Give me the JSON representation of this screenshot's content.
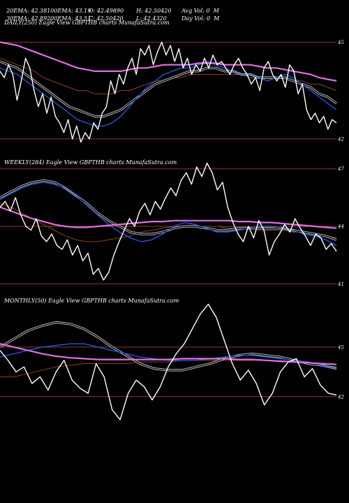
{
  "header": {
    "line1": [
      "20EMA: 42.38",
      "100EMA: 43.19",
      "O: 42.49890",
      "H: 42.50420",
      "Avg Vol: 0  M"
    ],
    "line2": [
      "30EMA: 42.89",
      "200EMA: 43.51",
      "C: 42.50420",
      "L: 42.4320",
      "Day Vol: 0  M"
    ]
  },
  "colors": {
    "background": "#000000",
    "price": "#ffffff",
    "ema_fast": "#2255dd",
    "ema_mid": "#c8c8c8",
    "ema_slow": "#8b4513",
    "ema_long": "#e070e0",
    "level_line": "#8b3a2a"
  },
  "chart_data": [
    {
      "type": "line",
      "title": "DAILY(250) Eagle  View  GBPTHB charts MunafaSutra.com",
      "y_ticks": [
        "45",
        "42"
      ],
      "levels": [
        45,
        42
      ],
      "ylim": [
        41.5,
        45.7
      ],
      "series": [
        {
          "role": "price",
          "values": [
            44.1,
            43.9,
            44.3,
            44.0,
            43.2,
            43.8,
            44.5,
            44.2,
            43.5,
            43.0,
            43.4,
            42.8,
            43.3,
            42.7,
            42.5,
            42.2,
            42.6,
            42.0,
            42.4,
            41.9,
            42.2,
            42.0,
            42.5,
            42.3,
            42.8,
            43.0,
            43.8,
            43.4,
            44.0,
            43.7,
            44.2,
            44.5,
            44.0,
            44.8,
            44.6,
            44.9,
            44.3,
            44.7,
            45.0,
            44.6,
            44.9,
            44.4,
            44.8,
            44.2,
            44.5,
            44.0,
            44.3,
            44.1,
            44.5,
            44.2,
            44.6,
            44.3,
            44.4,
            44.2,
            44.0,
            44.3,
            44.5,
            44.2,
            44.0,
            43.7,
            43.9,
            43.5,
            44.2,
            44.4,
            44.0,
            43.8,
            44.0,
            43.6,
            44.3,
            44.1,
            43.4,
            43.7,
            42.9,
            42.6,
            42.8,
            42.5,
            42.7,
            42.3,
            42.6,
            42.5
          ]
        },
        {
          "role": "ema_fast",
          "values": [
            44.2,
            44.1,
            44.0,
            43.8,
            43.6,
            43.4,
            43.2,
            43.0,
            42.8,
            42.6,
            42.5,
            42.4,
            42.4,
            42.5,
            42.7,
            43.0,
            43.3,
            43.6,
            43.8,
            44.0,
            44.1,
            44.2,
            44.2,
            44.3,
            44.4,
            44.3,
            44.2,
            44.1,
            44.0,
            44.0,
            43.9,
            43.8,
            43.9,
            44.0,
            43.9,
            43.7,
            43.5,
            43.3,
            43.1,
            42.9
          ]
        },
        {
          "role": "ema_mid",
          "values": [
            44.4,
            44.3,
            44.2,
            44.0,
            43.8,
            43.6,
            43.4,
            43.2,
            43.0,
            42.9,
            42.8,
            42.7,
            42.7,
            42.8,
            42.9,
            43.1,
            43.3,
            43.5,
            43.7,
            43.8,
            43.9,
            44.0,
            44.1,
            44.1,
            44.2,
            44.2,
            44.1,
            44.1,
            44.0,
            44.0,
            43.9,
            43.9,
            43.9,
            43.9,
            43.8,
            43.7,
            43.6,
            43.4,
            43.3,
            43.1
          ]
        },
        {
          "role": "ema_slow",
          "values": [
            44.5,
            44.4,
            44.3,
            44.2,
            44.1,
            43.9,
            43.8,
            43.7,
            43.6,
            43.5,
            43.5,
            43.4,
            43.4,
            43.4,
            43.5,
            43.5,
            43.6,
            43.7,
            43.8,
            43.8,
            43.9,
            43.9,
            44.0,
            44.0,
            44.0,
            44.0,
            44.0,
            44.0,
            44.0,
            43.9,
            43.9,
            43.9,
            43.9,
            43.9,
            43.8,
            43.8,
            43.7,
            43.7,
            43.6,
            43.5
          ]
        },
        {
          "role": "ema_long",
          "values": [
            45.0,
            44.95,
            44.9,
            44.8,
            44.7,
            44.6,
            44.5,
            44.4,
            44.3,
            44.2,
            44.15,
            44.1,
            44.1,
            44.1,
            44.1,
            44.15,
            44.2,
            44.2,
            44.25,
            44.3,
            44.3,
            44.3,
            44.3,
            44.35,
            44.35,
            44.35,
            44.3,
            44.3,
            44.3,
            44.3,
            44.25,
            44.2,
            44.2,
            44.15,
            44.1,
            44.05,
            44.0,
            43.9,
            43.85,
            43.8
          ]
        }
      ]
    },
    {
      "type": "line",
      "title": "WEEKLY(284) Eagle  View  GBPTHB charts MunafaSutra.com",
      "y_ticks": [
        "47",
        "44",
        "41"
      ],
      "levels": [
        47,
        44,
        41
      ],
      "ylim": [
        40.5,
        47.5
      ],
      "series": [
        {
          "role": "price",
          "values": [
            45.0,
            45.3,
            44.8,
            45.5,
            44.6,
            44.0,
            43.8,
            44.4,
            43.5,
            43.2,
            43.6,
            43.0,
            42.8,
            43.3,
            42.5,
            43.0,
            42.2,
            42.6,
            41.5,
            41.8,
            41.2,
            41.6,
            42.5,
            43.2,
            43.8,
            44.4,
            44.0,
            44.8,
            45.2,
            44.6,
            45.3,
            44.9,
            45.5,
            46.0,
            45.6,
            46.4,
            46.8,
            46.2,
            47.1,
            46.6,
            47.3,
            46.8,
            45.9,
            46.3,
            45.0,
            44.2,
            43.6,
            43.2,
            44.0,
            43.4,
            44.3,
            43.8,
            42.5,
            43.2,
            43.6,
            44.1,
            43.7,
            44.4,
            43.9,
            43.5,
            43.0,
            43.6,
            43.4,
            42.8,
            43.1,
            42.7
          ]
        },
        {
          "role": "ema_fast",
          "values": [
            45.4,
            45.7,
            46.0,
            46.2,
            46.3,
            46.2,
            46.0,
            45.6,
            45.1,
            44.6,
            44.1,
            43.7,
            43.4,
            43.2,
            43.3,
            43.6,
            44.0,
            44.2,
            44.1,
            43.9,
            43.7,
            43.7,
            43.8,
            43.9,
            44.0,
            44.0,
            43.9,
            43.8,
            43.6,
            43.5,
            43.3,
            43.0
          ]
        },
        {
          "role": "ema_mid",
          "values": [
            45.5,
            45.8,
            46.1,
            46.3,
            46.4,
            46.3,
            46.0,
            45.6,
            45.2,
            44.7,
            44.3,
            44.0,
            43.7,
            43.6,
            43.6,
            43.7,
            43.9,
            44.0,
            44.0,
            43.9,
            43.8,
            43.8,
            43.9,
            43.9,
            43.9,
            43.9,
            43.9,
            43.8,
            43.7,
            43.6,
            43.5,
            43.3
          ]
        },
        {
          "role": "ema_slow",
          "values": [
            45.2,
            45.0,
            44.7,
            44.4,
            44.1,
            43.8,
            43.5,
            43.3,
            43.2,
            43.2,
            43.3,
            43.4,
            43.5,
            43.7,
            43.8,
            43.9,
            44.0,
            44.0,
            44.0,
            44.0,
            44.0,
            43.9,
            43.9,
            43.9,
            43.8,
            43.8,
            43.8,
            43.7,
            43.7,
            43.6,
            43.5,
            43.4
          ]
        },
        {
          "role": "ema_long",
          "values": [
            45.0,
            44.8,
            44.6,
            44.4,
            44.25,
            44.1,
            44.0,
            43.95,
            43.95,
            44.0,
            44.05,
            44.1,
            44.15,
            44.2,
            44.25,
            44.25,
            44.3,
            44.3,
            44.3,
            44.3,
            44.3,
            44.3,
            44.25,
            44.25,
            44.2,
            44.2,
            44.15,
            44.1,
            44.05,
            44.0,
            43.95,
            43.9
          ]
        }
      ]
    },
    {
      "type": "line",
      "title": "MONTHLY(50) Eagle  View  GBPTHB charts MunafaSutra.com",
      "y_ticks": [
        "45",
        "42"
      ],
      "levels": [
        45,
        42
      ],
      "ylim": [
        40.0,
        48.0
      ],
      "series": [
        {
          "role": "price",
          "values": [
            44.8,
            44.2,
            43.5,
            43.8,
            42.8,
            43.2,
            42.4,
            43.5,
            44.2,
            43.0,
            42.5,
            42.2,
            44.0,
            43.2,
            41.2,
            40.6,
            42.2,
            43.0,
            42.6,
            41.8,
            42.6,
            43.8,
            44.6,
            45.2,
            46.1,
            47.0,
            47.6,
            46.8,
            45.4,
            44.0,
            43.0,
            43.6,
            42.8,
            41.5,
            42.2,
            43.5,
            44.1,
            44.3,
            43.2,
            43.7,
            42.7,
            42.2,
            42.1
          ]
        },
        {
          "role": "ema_fast",
          "values": [
            44.4,
            44.6,
            44.8,
            45.0,
            45.1,
            45.2,
            45.2,
            45.0,
            44.8,
            44.6,
            44.4,
            44.3,
            44.2,
            44.2,
            44.2,
            44.3,
            44.4,
            44.5,
            44.5,
            44.4,
            44.3,
            44.2,
            44.1,
            43.9,
            43.7
          ]
        },
        {
          "role": "ema_mid",
          "values": [
            45.0,
            45.5,
            46.0,
            46.3,
            46.5,
            46.4,
            46.1,
            45.6,
            45.0,
            44.5,
            44.0,
            43.7,
            43.6,
            43.6,
            43.8,
            44.0,
            44.3,
            44.5,
            44.6,
            44.5,
            44.4,
            44.2,
            44.0,
            43.9,
            43.7
          ]
        },
        {
          "role": "ema_slow",
          "values": [
            43.2,
            43.2,
            43.4,
            43.6,
            43.8,
            43.9,
            44.0,
            44.0,
            44.0,
            44.0,
            44.1,
            44.1,
            44.1,
            44.2,
            44.2,
            44.2,
            44.2,
            44.2,
            44.2,
            44.2,
            44.1,
            44.1,
            44.0,
            43.9,
            43.8
          ]
        },
        {
          "role": "ema_long",
          "values": [
            45.2,
            45.0,
            44.8,
            44.6,
            44.45,
            44.35,
            44.3,
            44.25,
            44.25,
            44.25,
            44.25,
            44.25,
            44.25,
            44.3,
            44.3,
            44.3,
            44.3,
            44.25,
            44.25,
            44.2,
            44.15,
            44.1,
            44.05,
            44.0,
            43.95
          ]
        }
      ]
    }
  ]
}
